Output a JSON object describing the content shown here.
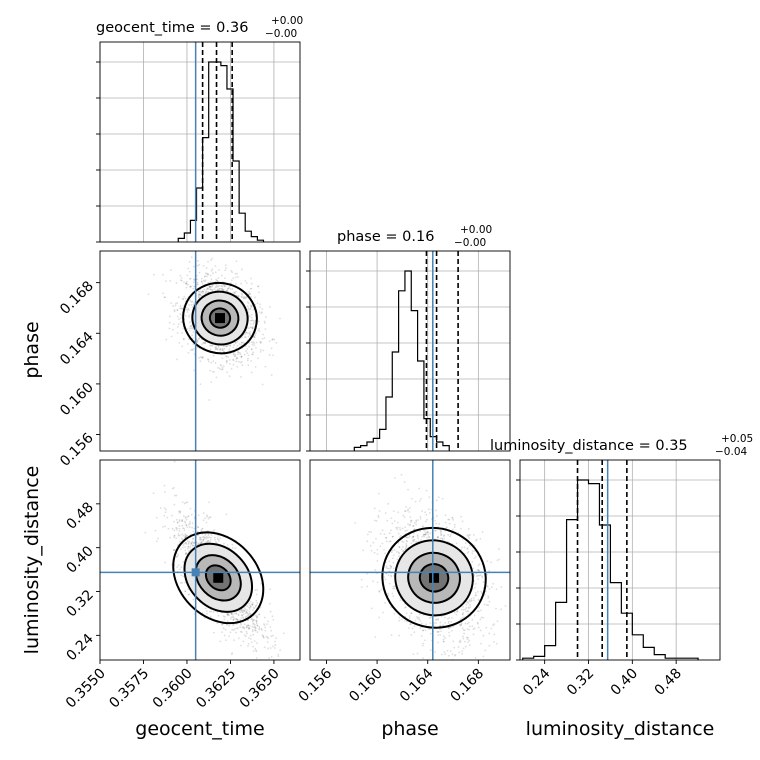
{
  "chart_data": {
    "type": "corner",
    "parameters": [
      "geocent_time",
      "phase",
      "luminosity_distance"
    ],
    "truths": {
      "geocent_time": 0.3605,
      "phase": 0.1644,
      "luminosity_distance": 0.355
    },
    "titles": {
      "geocent_time": {
        "label": "geocent_time",
        "value": "0.36",
        "plus": "+0.00",
        "minus": "−0.00"
      },
      "phase": {
        "label": "phase",
        "value": "0.16",
        "plus": "+0.00",
        "minus": "−0.00"
      },
      "luminosity_distance": {
        "label": "luminosity_distance",
        "value": "0.35",
        "plus": "+0.05",
        "minus": "−0.04"
      }
    },
    "axes": {
      "geocent_time": {
        "range": [
          0.355,
          0.3665
        ],
        "ticks": [
          "0.3550",
          "0.3575",
          "0.3600",
          "0.3625",
          "0.3650"
        ],
        "tick_values": [
          0.355,
          0.3575,
          0.36,
          0.3625,
          0.365
        ]
      },
      "phase": {
        "range": [
          0.1547,
          0.1705
        ],
        "ticks": [
          "0.156",
          "0.160",
          "0.164",
          "0.168"
        ],
        "tick_values": [
          0.156,
          0.16,
          0.164,
          0.168
        ]
      },
      "luminosity_distance": {
        "range": [
          0.195,
          0.56
        ],
        "ticks": [
          "0.24",
          "0.32",
          "0.40",
          "0.48"
        ],
        "tick_values": [
          0.24,
          0.32,
          0.4,
          0.48
        ]
      }
    },
    "histograms": {
      "geocent_time": {
        "bin_edges_start": 0.3595,
        "bin_width": 0.00035,
        "counts": [
          2,
          5,
          12,
          30,
          58,
          100,
          100,
          98,
          85,
          45,
          16,
          6,
          3,
          1
        ],
        "quantiles": [
          0.3609,
          0.3617,
          0.3626
        ]
      },
      "phase": {
        "bin_edges_start": 0.1582,
        "bin_width": 0.0005,
        "counts": [
          2,
          3,
          5,
          7,
          12,
          30,
          55,
          89,
          100,
          78,
          50,
          18,
          8,
          5,
          3
        ],
        "quantiles": [
          0.1639,
          0.1647,
          0.1664
        ]
      },
      "luminosity_distance": {
        "bin_edges_start": 0.2,
        "bin_width": 0.02,
        "counts": [
          1,
          2,
          8,
          32,
          78,
          100,
          98,
          75,
          43,
          26,
          14,
          7,
          3,
          1,
          1,
          1
        ],
        "quantiles": [
          0.3,
          0.345,
          0.39
        ]
      }
    },
    "scatter_2d": [
      {
        "x": "geocent_time",
        "y": "phase",
        "mean": [
          0.3619,
          0.1652
        ],
        "std": [
          0.00095,
          0.0015
        ],
        "corr": -0.25
      },
      {
        "x": "geocent_time",
        "y": "luminosity_distance",
        "mean": [
          0.3618,
          0.345
        ],
        "std": [
          0.0011,
          0.048
        ],
        "corr": -0.75
      },
      {
        "x": "phase",
        "y": "luminosity_distance",
        "mean": [
          0.1645,
          0.345
        ],
        "std": [
          0.0018,
          0.05
        ],
        "corr": -0.3
      }
    ],
    "grid": true,
    "truth_color": "#4682b4"
  }
}
